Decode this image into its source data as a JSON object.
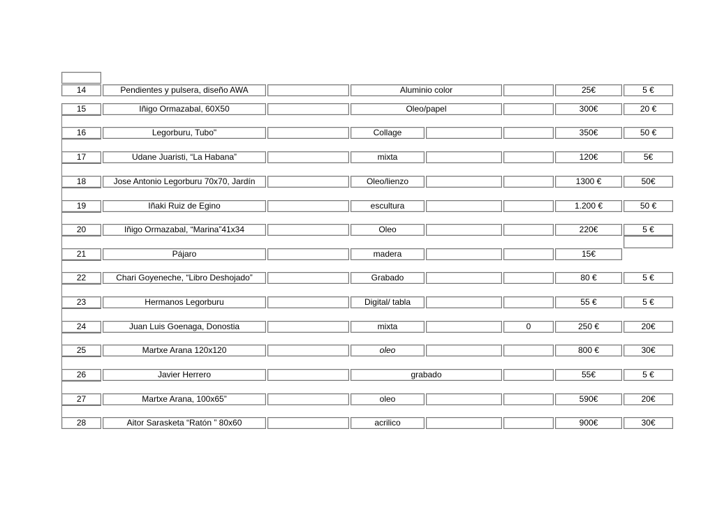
{
  "rows": [
    {
      "num": "14",
      "title": "Pendientes y pulsera, diseño AWA",
      "material": "Aluminio color",
      "merged": true,
      "extra": "",
      "price": "25€",
      "fee": "5 €"
    },
    {
      "num": "15",
      "title": "Iñigo Ormazabal, 60X50",
      "material": "Oleo/papel",
      "merged": true,
      "extra": "",
      "price": "300€",
      "fee": "20 €"
    },
    {
      "num": "16",
      "title": "Legorburu, Tubo\"",
      "material": "Collage",
      "merged": false,
      "extra": "",
      "price": "350€",
      "fee": "50 €"
    },
    {
      "num": "17",
      "title": "Udane Juaristi, “La Habana”",
      "material": "mixta",
      "merged": false,
      "extra": "",
      "price": "120€",
      "fee": "5€"
    },
    {
      "num": "18",
      "title": "Jose Antonio Legorburu 70x70, Jardín",
      "material": "Oleo/lienzo",
      "merged": false,
      "extra": "",
      "price": "1300 €",
      "fee": "50€"
    },
    {
      "num": "19",
      "title": "Iñaki Ruiz de Egino",
      "material": "escultura",
      "merged": false,
      "extra": "",
      "price": "1.200 €",
      "fee": "50 €"
    },
    {
      "num": "20",
      "title": "Iñigo Ormazabal, “Marina”41x34",
      "material": "Oleo",
      "merged": false,
      "extra": "",
      "price": "220€",
      "fee": "5 €"
    },
    {
      "num": "21",
      "title": "Pájaro",
      "material": "madera",
      "merged": false,
      "extra": "",
      "price": "15€",
      "fee": null
    },
    {
      "num": "22",
      "title": "Chari Goyeneche, “Libro Deshojado”",
      "material": "Grabado",
      "merged": false,
      "extra": "",
      "price": "80 €",
      "fee": "5 €"
    },
    {
      "num": "23",
      "title": "Hermanos Legorburu",
      "material": "Digital/ tabla",
      "merged": false,
      "extra": "",
      "price": "55 €",
      "fee": "5 €"
    },
    {
      "num": "24",
      "title": "Juan Luis Goenaga, Donostia",
      "material": "mixta",
      "merged": false,
      "extra": "0",
      "price": "250 €",
      "fee": "20€"
    },
    {
      "num": "25",
      "title": "Martxe Arana 120x120",
      "material": "oleo",
      "italic": true,
      "merged": false,
      "extra": "",
      "price": "800 €",
      "fee": "30€"
    },
    {
      "num": "26",
      "title": "Javier Herrero",
      "material": "grabado",
      "merged": true,
      "extra": "",
      "price": "55€",
      "fee": "5 €"
    },
    {
      "num": "27",
      "title": "Martxe Arana, 100x65”",
      "material": "oleo",
      "merged": false,
      "extra": "",
      "price": "590€",
      "fee": "20€"
    },
    {
      "num": "28",
      "title": "Aitor Sarasketa “Ratón ” 80x60",
      "material": "acrilico",
      "merged": false,
      "extra": "",
      "price": "900€",
      "fee": "30€"
    }
  ]
}
